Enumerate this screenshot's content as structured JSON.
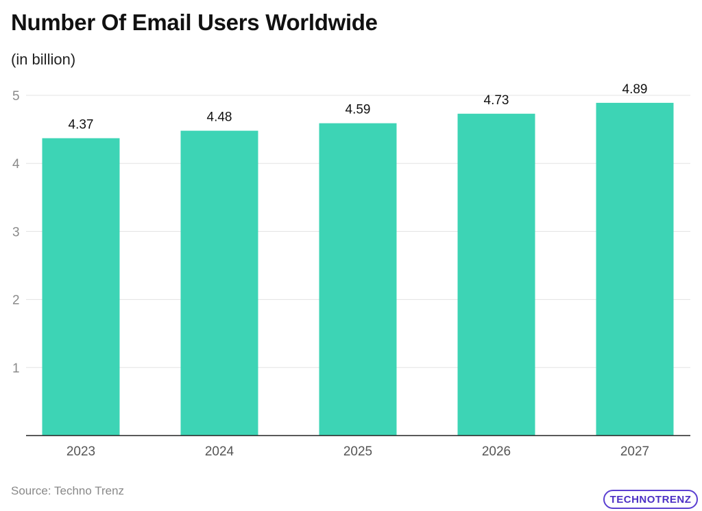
{
  "header": {
    "title": "Number Of Email Users Worldwide",
    "subtitle": "(in billion)"
  },
  "footer": {
    "source": "Source: Techno Trenz",
    "logo_text": "TECHNOTRENZ"
  },
  "colors": {
    "bar": "#3dd4b5",
    "grid": "#e3e3e3",
    "axis": "#222222",
    "tick_text": "#8a8a8a",
    "label_text": "#111111",
    "logo": "#4b2fc4"
  },
  "chart_data": {
    "type": "bar",
    "categories": [
      "2023",
      "2024",
      "2025",
      "2026",
      "2027"
    ],
    "values": [
      4.37,
      4.48,
      4.59,
      4.73,
      4.89
    ],
    "value_labels": [
      "4.37",
      "4.48",
      "4.59",
      "4.73",
      "4.89"
    ],
    "yticks": [
      1,
      2,
      3,
      4,
      5
    ],
    "ylim": [
      0,
      5
    ],
    "grid": true,
    "legend": "none"
  }
}
